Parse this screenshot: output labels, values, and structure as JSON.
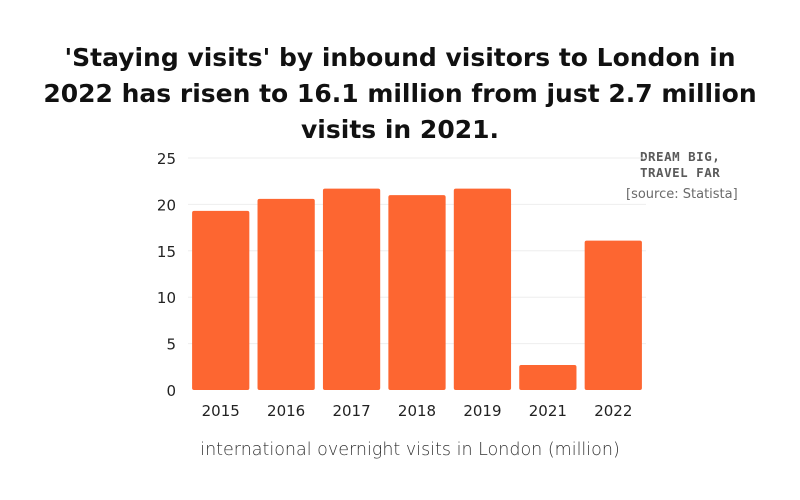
{
  "header": {
    "title": "'Staying visits' by inbound visitors to London in 2022 has risen to 16.1 million from just 2.7 million visits in 2021.",
    "brand_line1": "DREAM BIG,",
    "brand_line2": "TRAVEL FAR",
    "source": "[source: Statista]"
  },
  "chart_data": {
    "type": "bar",
    "title": "'Staying visits' by inbound visitors to London in 2022 has risen to 16.1 million from just 2.7 million visits in 2021.",
    "xlabel": "international overnight visits in London (million)",
    "ylabel": "",
    "categories": [
      "2015",
      "2016",
      "2017",
      "2018",
      "2019",
      "2021",
      "2022"
    ],
    "values": [
      19.3,
      20.6,
      21.7,
      21.0,
      21.7,
      2.7,
      16.1
    ],
    "ylim": [
      0,
      25
    ],
    "yticks": [
      0,
      5,
      10,
      15,
      20,
      25
    ],
    "grid": true,
    "bar_color": "#fd6631",
    "grid_color": "#eeeeee",
    "legend": "none"
  }
}
